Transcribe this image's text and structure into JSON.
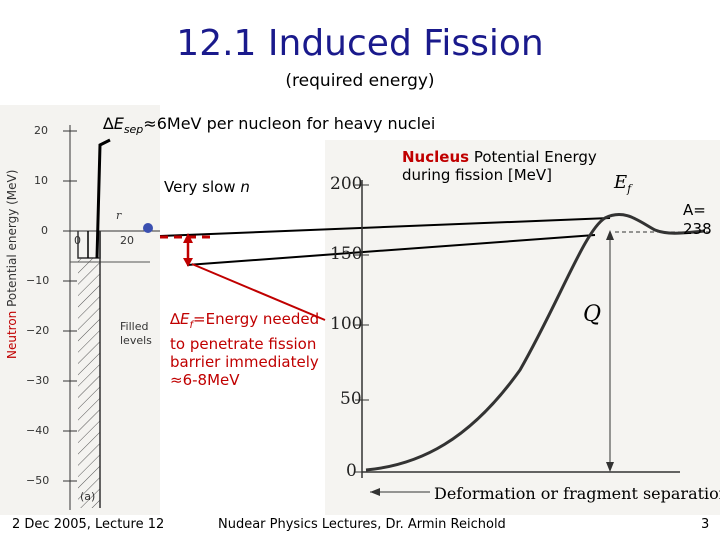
{
  "slide": {
    "title": "12.1 Induced Fission",
    "subtitle": "(required energy)"
  },
  "annotations": {
    "esep_prefix": "∆E",
    "esep_sub": "sep",
    "esep_rest": "≈6MeV per nucleon for heavy nuclei",
    "very_slow": "Very slow ",
    "very_slow_n": "n",
    "nucleus_bold": "Nucleus",
    "nucleus_rest": " Potential Energy",
    "nucleus_line2": "during fission [MeV]",
    "ef_prefix": "∆E",
    "ef_sub": "f",
    "ef_line1_rest": "=Energy needed",
    "ef_line2": "to penetrate fission",
    "ef_line3": "barrier immediately",
    "ef_line4": "≈6-8MeV",
    "a_line1": "A=",
    "a_line2": "238"
  },
  "left_figure": {
    "y_axis_title_red": "Neutron",
    "y_axis_title_rest": " Potential energy (MeV)",
    "y_ticks": [
      "20",
      "10",
      "0",
      "−10",
      "−20",
      "−30",
      "−40",
      "−50"
    ],
    "x_ticks": [
      "0",
      "20"
    ],
    "r_label": "r",
    "filled_levels_line1": "Filled",
    "filled_levels_line2": "levels",
    "panel_label": "(a)"
  },
  "right_figure": {
    "y_ticks": [
      "200",
      "150",
      "100",
      "50",
      "0"
    ],
    "ef_symbol": "E",
    "ef_sub": "f",
    "q_label": "Q",
    "x_axis_label": "Deformation or fragment separation"
  },
  "footer": {
    "date": "2 Dec 2005, Lecture 12",
    "course": "Nudear Physics  Lectures, Dr. Armin Reichold",
    "page": "3"
  },
  "colors": {
    "title": "#1a1a8c",
    "highlight_red": "#c00000",
    "neutron_dot": "#3a4fb0"
  }
}
